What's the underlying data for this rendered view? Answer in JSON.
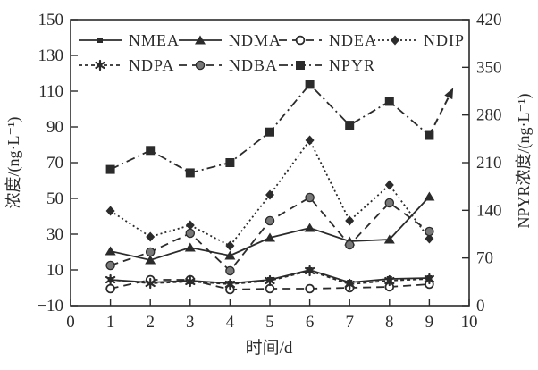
{
  "figure": {
    "background": "#ffffff",
    "ink_color": "#2b2b2b",
    "gray_fill": "#787878"
  },
  "chart_data": {
    "type": "line",
    "title": "",
    "xlabel": "时间/d",
    "ylabel_left": "浓度/(ng·L⁻¹)",
    "ylabel_right": "NPYR浓度/(ng·L⁻¹)",
    "x": [
      1,
      2,
      3,
      4,
      5,
      6,
      7,
      8,
      9
    ],
    "xlim": [
      0,
      10
    ],
    "x_ticks": [
      0,
      1,
      2,
      3,
      4,
      5,
      6,
      7,
      8,
      9,
      10
    ],
    "ylim_left": [
      -10,
      150
    ],
    "y_ticks_left": [
      150,
      130,
      110,
      90,
      70,
      50,
      30,
      10,
      -10
    ],
    "ylim_right": [
      0,
      420
    ],
    "y_ticks_right": [
      420,
      350,
      280,
      210,
      140,
      70,
      0
    ],
    "grid": false,
    "legend": {
      "position": "top-inside",
      "rows": [
        [
          "NMEA",
          "NDMA",
          "NDEA",
          "NDIP"
        ],
        [
          "NDPA",
          "NDBA",
          "NPYR"
        ]
      ]
    },
    "series": [
      {
        "name": "NMEA",
        "axis": "left",
        "line": "solid",
        "marker": "small-square",
        "values": [
          4.5,
          3,
          4,
          2.5,
          4.5,
          10,
          3,
          5,
          5.5
        ]
      },
      {
        "name": "NDMA",
        "axis": "left",
        "line": "solid",
        "marker": "triangle",
        "values": [
          20.5,
          15.5,
          22.5,
          18,
          28,
          33.5,
          26,
          27,
          51
        ]
      },
      {
        "name": "NDEA",
        "axis": "left",
        "line": "long-dash",
        "marker": "open-circle",
        "values": [
          -0.5,
          4.5,
          4.5,
          -1,
          -0.5,
          -0.5,
          0,
          0.5,
          2
        ]
      },
      {
        "name": "NDIP",
        "axis": "left",
        "line": "dot",
        "marker": "diamond",
        "values": [
          43,
          28.5,
          35,
          23.5,
          52,
          82.5,
          37.5,
          57.5,
          27.5
        ]
      },
      {
        "name": "NDPA",
        "axis": "left",
        "line": "short-dash",
        "marker": "asterisk",
        "values": [
          4.5,
          2.5,
          3.5,
          2,
          4,
          9.5,
          2,
          4,
          5
        ]
      },
      {
        "name": "NDBA",
        "axis": "left",
        "line": "long-dash",
        "marker": "gray-circle",
        "values": [
          12.5,
          20,
          30.5,
          9.5,
          37.5,
          50.5,
          24,
          47.5,
          31.5
        ]
      },
      {
        "name": "NPYR",
        "axis": "right",
        "line": "dash-dot",
        "marker": "square",
        "values": [
          200,
          228,
          195,
          210,
          255,
          325,
          265,
          300,
          250
        ],
        "arrow_to": {
          "x": 9.6,
          "value": 320
        }
      }
    ]
  }
}
